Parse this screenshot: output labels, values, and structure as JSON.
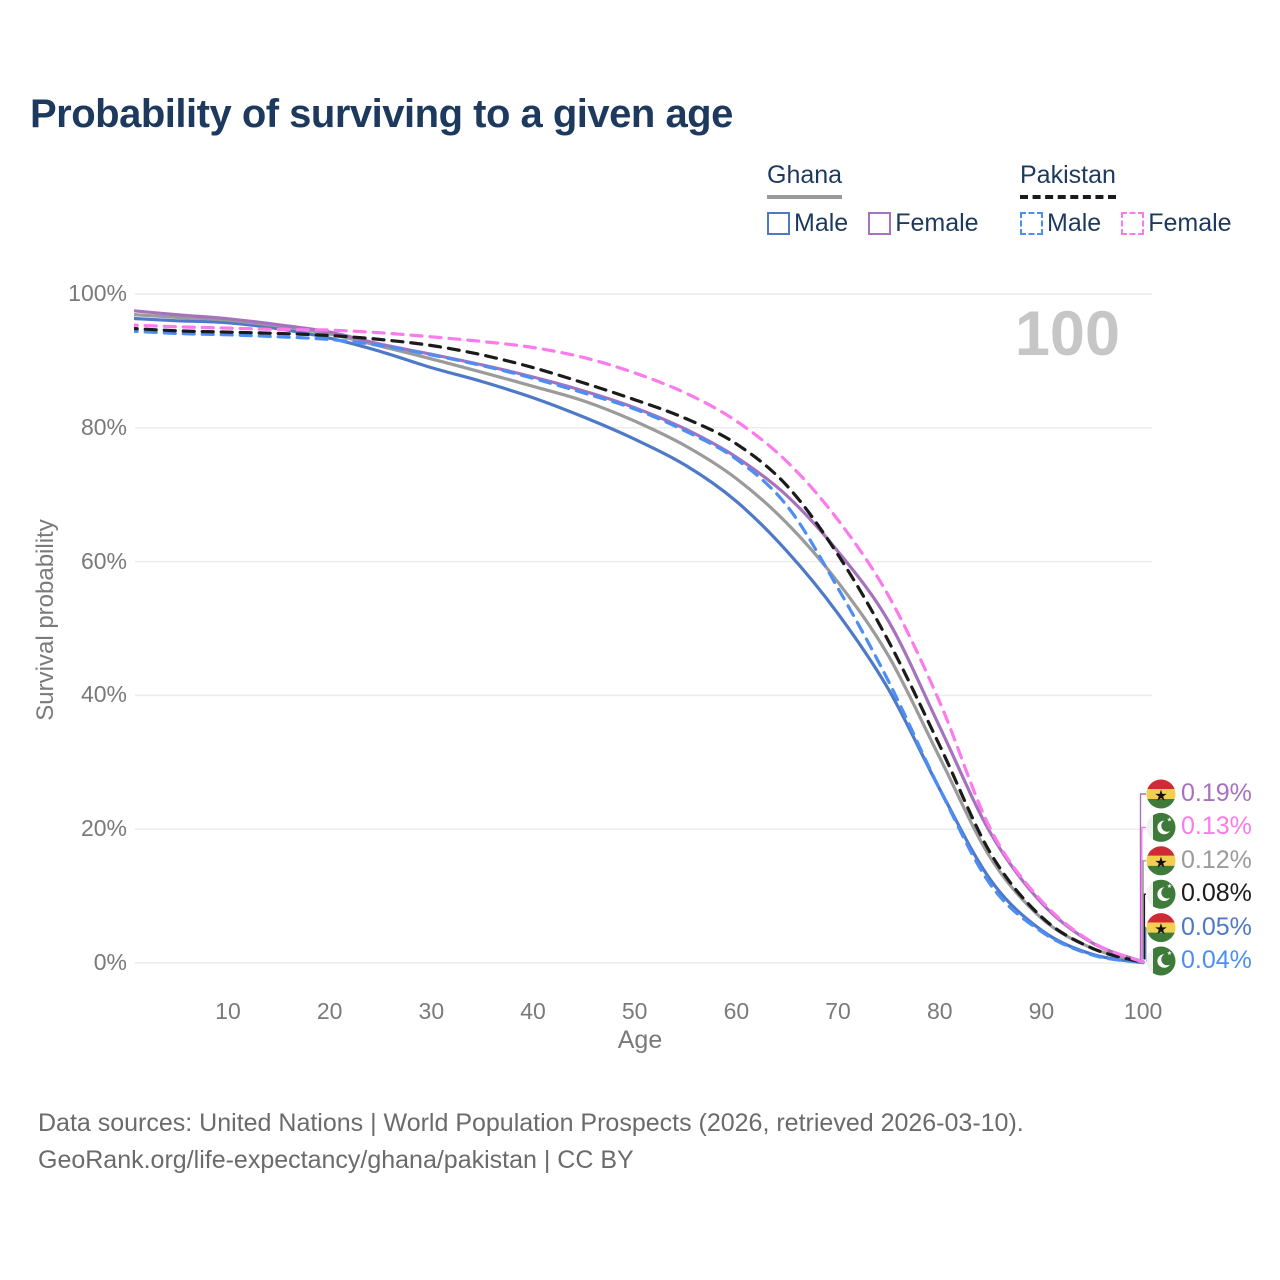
{
  "title": "Probability of surviving to a given age",
  "watermark": "100",
  "legend": {
    "groups": [
      {
        "label": "Ghana",
        "line_style": "solid",
        "underline_color": "#9a9a9a",
        "items": [
          {
            "label": "Male",
            "color": "#4e79c7"
          },
          {
            "label": "Female",
            "color": "#a672bd"
          }
        ]
      },
      {
        "label": "Pakistan",
        "line_style": "dashed",
        "underline_color": "#1b1b1b",
        "items": [
          {
            "label": "Male",
            "color": "#4d8ef5"
          },
          {
            "label": "Female",
            "color": "#fb7aec"
          }
        ]
      }
    ]
  },
  "chart_data": {
    "type": "line",
    "title": "Probability of surviving to a given age",
    "xlabel": "Age",
    "ylabel": "Survival probability",
    "xlim": [
      0,
      100
    ],
    "ylim": [
      0,
      100
    ],
    "grid": "horizontal",
    "x_ticks": [
      "10",
      "20",
      "30",
      "40",
      "50",
      "60",
      "70",
      "80",
      "90",
      "100"
    ],
    "x_tick_values": [
      10,
      20,
      30,
      40,
      50,
      60,
      70,
      80,
      90,
      100
    ],
    "y_ticks": [
      "100%",
      "80%",
      "60%",
      "40%",
      "20%",
      "0%"
    ],
    "y_tick_values": [
      100,
      80,
      60,
      40,
      20,
      0
    ],
    "hover_age_indicator": "100",
    "x": [
      0,
      5,
      10,
      15,
      20,
      25,
      30,
      35,
      40,
      45,
      50,
      55,
      60,
      65,
      70,
      75,
      80,
      85,
      90,
      95,
      100
    ],
    "series": [
      {
        "name": "Ghana Male",
        "country": "Ghana",
        "sex": "Male",
        "color": "#4e79c7",
        "dashed": false,
        "values": [
          96.4,
          96.0,
          95.7,
          94.8,
          93.4,
          91.4,
          89.0,
          86.9,
          84.5,
          81.6,
          78.3,
          74.4,
          69.0,
          61.5,
          52.2,
          40.8,
          26.0,
          12.4,
          4.9,
          1.3,
          0.05
        ],
        "end_value": "0.05%"
      },
      {
        "name": "Ghana",
        "country": "Ghana",
        "sex": "Both",
        "color": "#9b9b9b",
        "dashed": false,
        "values": [
          97.0,
          96.5,
          96.1,
          95.2,
          94.0,
          92.2,
          90.3,
          88.3,
          86.2,
          84.0,
          81.0,
          77.3,
          72.4,
          65.7,
          56.9,
          45.8,
          30.7,
          15.7,
          6.7,
          2.2,
          0.12
        ],
        "end_value": "0.12%"
      },
      {
        "name": "Ghana Female",
        "country": "Ghana",
        "sex": "Female",
        "color": "#a672bd",
        "dashed": false,
        "values": [
          97.6,
          96.9,
          96.3,
          95.4,
          94.3,
          92.5,
          91.0,
          89.4,
          87.6,
          85.5,
          83.0,
          79.8,
          75.6,
          69.8,
          61.5,
          51.0,
          35.3,
          19.4,
          9.0,
          3.0,
          0.19
        ],
        "end_value": "0.19%"
      },
      {
        "name": "Pakistan Male",
        "country": "Pakistan",
        "sex": "Male",
        "color": "#4d8ef5",
        "dashed": true,
        "values": [
          94.5,
          94.1,
          93.9,
          93.6,
          93.2,
          92.3,
          90.9,
          89.3,
          87.4,
          85.2,
          82.8,
          79.5,
          75.3,
          68.3,
          56.0,
          42.0,
          26.0,
          11.7,
          4.7,
          1.2,
          0.04
        ],
        "end_value": "0.04%"
      },
      {
        "name": "Pakistan",
        "country": "Pakistan",
        "sex": "Both",
        "color": "#1b1b1b",
        "dashed": true,
        "values": [
          94.9,
          94.5,
          94.3,
          94.1,
          93.8,
          93.2,
          92.3,
          90.9,
          89.0,
          86.7,
          84.2,
          81.4,
          77.6,
          71.3,
          61.0,
          48.0,
          32.5,
          16.4,
          6.9,
          2.2,
          0.08
        ],
        "end_value": "0.08%"
      },
      {
        "name": "Pakistan Female",
        "country": "Pakistan",
        "sex": "Female",
        "color": "#fb7aec",
        "dashed": true,
        "values": [
          95.4,
          95.1,
          94.9,
          94.7,
          94.6,
          94.2,
          93.6,
          92.9,
          92.0,
          90.5,
          88.2,
          85.2,
          81.0,
          74.9,
          66.2,
          54.8,
          39.0,
          20.0,
          9.3,
          3.1,
          0.13
        ],
        "end_value": "0.13%"
      }
    ],
    "end_labels": [
      {
        "flag": "ghana",
        "series": "Ghana Female",
        "text": "0.19%",
        "color": "#a672bd"
      },
      {
        "flag": "pakistan",
        "series": "Pakistan Female",
        "text": "0.13%",
        "color": "#fb7aec"
      },
      {
        "flag": "ghana",
        "series": "Ghana",
        "text": "0.12%",
        "color": "#9b9b9b"
      },
      {
        "flag": "pakistan",
        "series": "Pakistan",
        "text": "0.08%",
        "color": "#1b1b1b"
      },
      {
        "flag": "ghana",
        "series": "Ghana Male",
        "text": "0.05%",
        "color": "#4e79c7"
      },
      {
        "flag": "pakistan",
        "series": "Pakistan Male",
        "text": "0.04%",
        "color": "#4d8ef5"
      }
    ],
    "legend_position": "top-right"
  },
  "footer": {
    "line1": "Data sources: United Nations | World Population Prospects (2026, retrieved 2026-03-10).",
    "line2": "GeoRank.org/life-expectancy/ghana/pakistan | CC BY"
  }
}
